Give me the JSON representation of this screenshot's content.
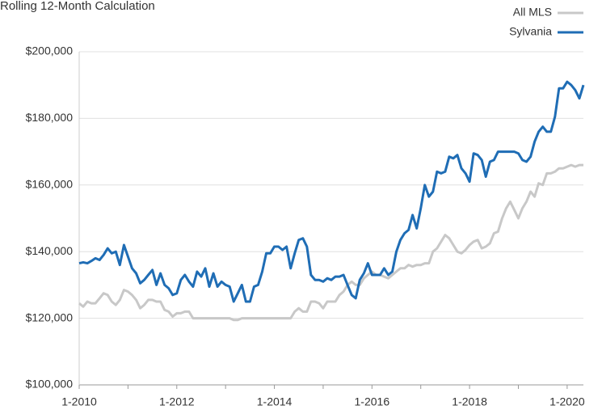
{
  "chart_data": {
    "type": "line",
    "title": "Rolling 12-Month Calculation",
    "categories": [
      "1-2010",
      null,
      null,
      null,
      null,
      null,
      null,
      null,
      null,
      null,
      null,
      null,
      null,
      null,
      null,
      null,
      null,
      null,
      null,
      null,
      null,
      null,
      null,
      null,
      "1-2012",
      null,
      null,
      null,
      null,
      null,
      null,
      null,
      null,
      null,
      null,
      null,
      null,
      null,
      null,
      null,
      null,
      null,
      null,
      null,
      null,
      null,
      null,
      null,
      "1-2014",
      null,
      null,
      null,
      null,
      null,
      null,
      null,
      null,
      null,
      null,
      null,
      null,
      null,
      null,
      null,
      null,
      null,
      null,
      null,
      null,
      null,
      null,
      null,
      "1-2016",
      null,
      null,
      null,
      null,
      null,
      null,
      null,
      null,
      null,
      null,
      null,
      null,
      null,
      null,
      null,
      null,
      null,
      null,
      null,
      null,
      null,
      null,
      null,
      "1-2018",
      null,
      null,
      null,
      null,
      null,
      null,
      null,
      null,
      null,
      null,
      null,
      null,
      null,
      null,
      null,
      null,
      null,
      null,
      null,
      null,
      null,
      null,
      null,
      "1-2020",
      null,
      null,
      null,
      null
    ],
    "series": [
      {
        "name": "All MLS",
        "color": "#c8c8c8",
        "values": [
          124500,
          123500,
          125000,
          124500,
          124500,
          126000,
          127500,
          127000,
          125000,
          124000,
          125500,
          128500,
          128000,
          127000,
          125500,
          123000,
          124000,
          125500,
          125500,
          125000,
          125000,
          122500,
          122000,
          120500,
          121500,
          121500,
          122000,
          122000,
          120000,
          120000,
          120000,
          120000,
          120000,
          120000,
          120000,
          120000,
          120000,
          120000,
          119500,
          119500,
          120000,
          120000,
          120000,
          120000,
          120000,
          120000,
          120000,
          120000,
          120000,
          120000,
          120000,
          120000,
          120000,
          122000,
          123000,
          122000,
          122000,
          125000,
          125000,
          124500,
          123000,
          125000,
          125000,
          125000,
          127000,
          128000,
          130000,
          131000,
          130000,
          130000,
          132000,
          133000,
          134000,
          133000,
          133000,
          132500,
          132000,
          133000,
          134000,
          135000,
          135000,
          136000,
          135500,
          136000,
          136000,
          136500,
          136500,
          140000,
          141000,
          143000,
          145000,
          144000,
          142000,
          140000,
          139500,
          140500,
          142000,
          143000,
          143500,
          141000,
          141500,
          142500,
          145500,
          146000,
          150000,
          153000,
          155000,
          152500,
          150000,
          153000,
          155000,
          158000,
          156500,
          160500,
          160000,
          163500,
          163500,
          164000,
          165000,
          165000,
          165500,
          166000,
          165500,
          166000,
          166000
        ]
      },
      {
        "name": "Sylvania",
        "color": "#1f6db5",
        "values": [
          136500,
          136800,
          136500,
          137200,
          138000,
          137500,
          139000,
          141000,
          139500,
          140000,
          136000,
          142000,
          138500,
          135000,
          133500,
          130500,
          131500,
          133000,
          134500,
          130000,
          133500,
          130000,
          129000,
          127000,
          127500,
          131500,
          133000,
          131000,
          129500,
          134000,
          132500,
          135000,
          129500,
          133500,
          129500,
          131000,
          130000,
          129500,
          125000,
          127500,
          130000,
          125000,
          125000,
          129500,
          130000,
          134000,
          139500,
          139500,
          141500,
          141500,
          140500,
          141500,
          135000,
          139500,
          143500,
          144000,
          141500,
          133000,
          131500,
          131500,
          131000,
          132000,
          131500,
          132500,
          132500,
          133000,
          130000,
          127000,
          126000,
          131500,
          133500,
          136500,
          133000,
          133000,
          133000,
          135000,
          133000,
          134000,
          140000,
          143500,
          145500,
          146500,
          151000,
          147000,
          153000,
          160000,
          156500,
          158000,
          164000,
          163500,
          164000,
          168500,
          168000,
          169000,
          165000,
          163500,
          161000,
          169500,
          169000,
          167500,
          162500,
          167000,
          167500,
          170000,
          170000,
          170000,
          170000,
          170000,
          169500,
          167500,
          167000,
          168500,
          173000,
          176000,
          177500,
          176000,
          176000,
          180500,
          189000,
          189000,
          191000,
          190000,
          188500,
          186000,
          190000
        ]
      }
    ],
    "ylim": [
      100000,
      200000
    ],
    "yticks": [
      {
        "value": 100000,
        "label": "$100,000"
      },
      {
        "value": 120000,
        "label": "$120,000"
      },
      {
        "value": 140000,
        "label": "$140,000"
      },
      {
        "value": 160000,
        "label": "$160,000"
      },
      {
        "value": 180000,
        "label": "$180,000"
      },
      {
        "value": 200000,
        "label": "$200,000"
      }
    ],
    "grid": true
  }
}
